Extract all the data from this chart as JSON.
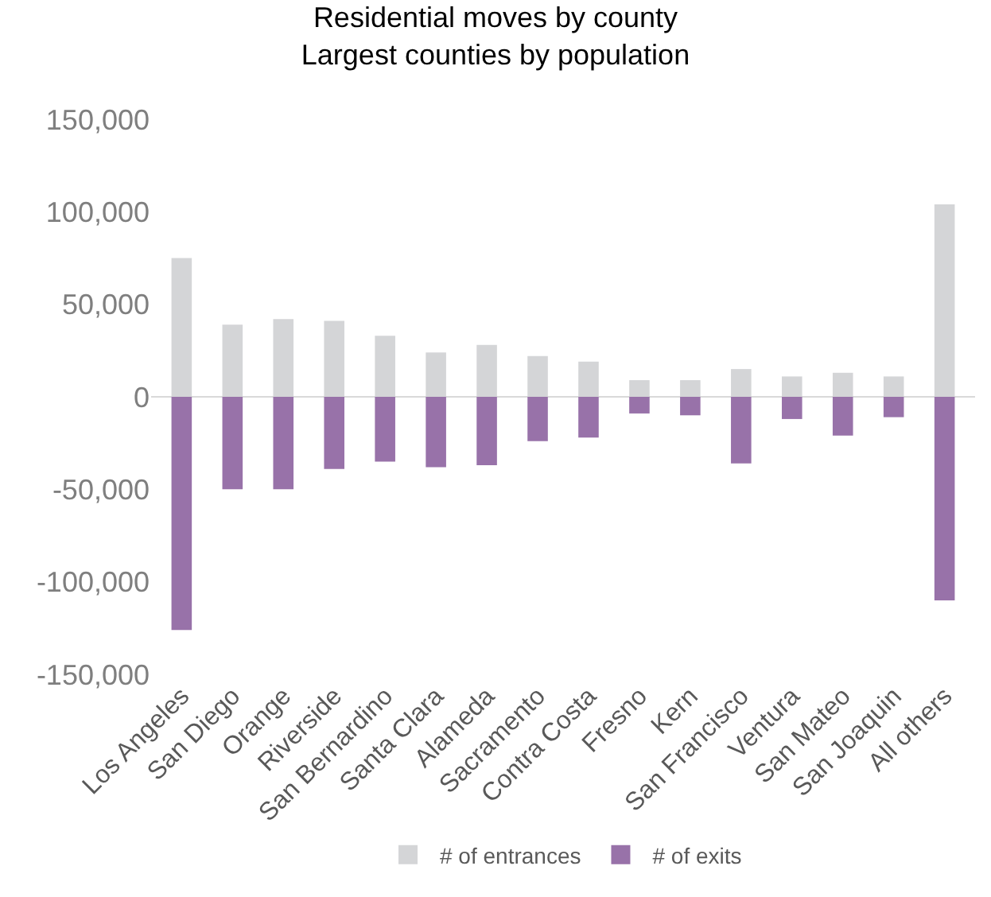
{
  "chart_data": {
    "type": "bar",
    "title": "Residential moves by county\nLargest counties by population",
    "stacked": true,
    "categories": [
      "Los Angeles",
      "San Diego",
      "Orange",
      "Riverside",
      "San Bernardino",
      "Santa Clara",
      "Alameda",
      "Sacramento",
      "Contra Costa",
      "Fresno",
      "Kern",
      "San Francisco",
      "Ventura",
      "San Mateo",
      "San Joaquin",
      "All others"
    ],
    "series": [
      {
        "name": "# of entrances",
        "color": "#d4d5d7",
        "values": [
          75000,
          39000,
          42000,
          41000,
          33000,
          24000,
          28000,
          22000,
          19000,
          9000,
          9000,
          15000,
          11000,
          13000,
          11000,
          104000
        ]
      },
      {
        "name": "# of exits",
        "color": "#9872a9",
        "values": [
          -126000,
          -50000,
          -50000,
          -39000,
          -35000,
          -38000,
          -37000,
          -24000,
          -22000,
          -9000,
          -10000,
          -36000,
          -12000,
          -21000,
          -11000,
          -110000
        ]
      }
    ],
    "ylim": [
      -150000,
      150000
    ],
    "yticks": [
      {
        "value": -150000,
        "label": "-150,000"
      },
      {
        "value": -100000,
        "label": "-100,000"
      },
      {
        "value": -50000,
        "label": "-50,000"
      },
      {
        "value": 0,
        "label": "0"
      },
      {
        "value": 50000,
        "label": "50,000"
      },
      {
        "value": 100000,
        "label": "100,000"
      },
      {
        "value": 150000,
        "label": "150,000"
      }
    ],
    "ref_lines": [
      {
        "axis": "y",
        "value": 0,
        "color": "#d9d9d9"
      }
    ],
    "legend": "bottom"
  }
}
